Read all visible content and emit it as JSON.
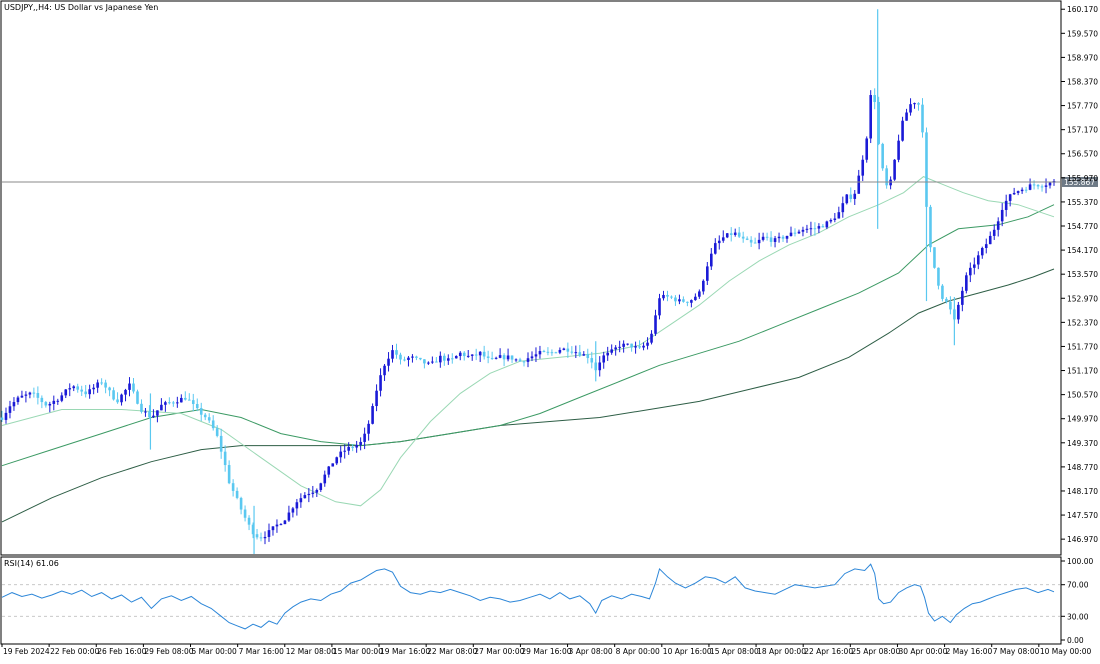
{
  "chart_data": {
    "type": "candlestick",
    "title": "USDJPY,,H4:  US Dollar vs Japanese Yen",
    "current_price": 155.867,
    "current_price_label": "155.867",
    "main_ylim": [
      146.6,
      160.35
    ],
    "y_ticks": [
      "160.170",
      "159.570",
      "158.970",
      "158.370",
      "157.770",
      "157.170",
      "156.570",
      "155.970",
      "155.370",
      "154.770",
      "154.170",
      "153.570",
      "152.970",
      "152.370",
      "151.770",
      "151.170",
      "150.570",
      "149.970",
      "149.370",
      "148.770",
      "148.170",
      "147.570",
      "146.970"
    ],
    "x_ticks": [
      "19 Feb 2024",
      "22 Feb 00:00",
      "26 Feb 16:00",
      "29 Feb 08:00",
      "5 Mar 00:00",
      "7 Mar 16:00",
      "12 Mar 08:00",
      "15 Mar 00:00",
      "19 Mar 16:00",
      "22 Mar 08:00",
      "27 Mar 00:00",
      "29 Mar 16:00",
      "3 Apr 08:00",
      "8 Apr 00:00",
      "10 Apr 16:00",
      "15 Apr 08:00",
      "18 Apr 00:00",
      "22 Apr 16:00",
      "25 Apr 08:00",
      "30 Apr 00:00",
      "2 May 16:00",
      "7 May 08:00",
      "10 May 00:00"
    ],
    "colors": {
      "bull": "#1a1ad6",
      "bear": "#5ac8f0",
      "ma_fast": "#9ad8b4",
      "ma_mid": "#3c9a64",
      "ma_slow": "#2e5e46",
      "rsi": "#2c86d8",
      "grid": "#c0c0c0",
      "price_line": "#8a8a8a",
      "price_tag": "#6e7a86"
    },
    "close_series_points": [
      [
        0,
        150.0
      ],
      [
        8,
        150.3
      ],
      [
        18,
        150.5
      ],
      [
        30,
        150.6
      ],
      [
        45,
        150.3
      ],
      [
        58,
        150.5
      ],
      [
        70,
        150.8
      ],
      [
        85,
        150.6
      ],
      [
        100,
        150.9
      ],
      [
        115,
        150.4
      ],
      [
        128,
        150.8
      ],
      [
        140,
        150.2
      ],
      [
        150,
        150.0
      ],
      [
        160,
        150.3
      ],
      [
        172,
        150.4
      ],
      [
        185,
        150.5
      ],
      [
        195,
        150.2
      ],
      [
        205,
        150.0
      ],
      [
        215,
        149.6
      ],
      [
        222,
        149.0
      ],
      [
        228,
        148.4
      ],
      [
        235,
        148.0
      ],
      [
        242,
        147.6
      ],
      [
        250,
        147.2
      ],
      [
        258,
        147.0
      ],
      [
        266,
        147.1
      ],
      [
        275,
        147.3
      ],
      [
        285,
        147.5
      ],
      [
        295,
        147.9
      ],
      [
        305,
        148.1
      ],
      [
        315,
        148.2
      ],
      [
        325,
        148.6
      ],
      [
        335,
        149.0
      ],
      [
        345,
        149.2
      ],
      [
        355,
        149.3
      ],
      [
        362,
        149.4
      ],
      [
        370,
        150.0
      ],
      [
        377,
        150.8
      ],
      [
        385,
        151.4
      ],
      [
        393,
        151.7
      ],
      [
        400,
        151.4
      ],
      [
        410,
        151.5
      ],
      [
        420,
        151.4
      ],
      [
        430,
        151.3
      ],
      [
        440,
        151.5
      ],
      [
        450,
        151.4
      ],
      [
        460,
        151.6
      ],
      [
        470,
        151.5
      ],
      [
        480,
        151.6
      ],
      [
        490,
        151.4
      ],
      [
        500,
        151.5
      ],
      [
        510,
        151.5
      ],
      [
        520,
        151.4
      ],
      [
        530,
        151.5
      ],
      [
        540,
        151.6
      ],
      [
        550,
        151.6
      ],
      [
        560,
        151.7
      ],
      [
        570,
        151.7
      ],
      [
        580,
        151.6
      ],
      [
        590,
        151.5
      ],
      [
        596,
        151.2
      ],
      [
        602,
        151.5
      ],
      [
        610,
        151.6
      ],
      [
        620,
        151.8
      ],
      [
        630,
        151.8
      ],
      [
        640,
        151.7
      ],
      [
        650,
        151.9
      ],
      [
        655,
        152.4
      ],
      [
        660,
        153.0
      ],
      [
        670,
        153.0
      ],
      [
        680,
        152.9
      ],
      [
        690,
        152.9
      ],
      [
        700,
        153.1
      ],
      [
        708,
        153.8
      ],
      [
        716,
        154.3
      ],
      [
        725,
        154.5
      ],
      [
        735,
        154.6
      ],
      [
        745,
        154.4
      ],
      [
        755,
        154.3
      ],
      [
        765,
        154.5
      ],
      [
        775,
        154.4
      ],
      [
        785,
        154.5
      ],
      [
        795,
        154.6
      ],
      [
        805,
        154.7
      ],
      [
        815,
        154.7
      ],
      [
        825,
        154.8
      ],
      [
        832,
        154.9
      ],
      [
        840,
        155.1
      ],
      [
        848,
        155.5
      ],
      [
        855,
        155.5
      ],
      [
        862,
        156.2
      ],
      [
        868,
        157.0
      ],
      [
        872,
        158.0
      ],
      [
        876,
        157.9
      ],
      [
        880,
        156.8
      ],
      [
        885,
        156.0
      ],
      [
        890,
        155.6
      ],
      [
        896,
        156.4
      ],
      [
        902,
        157.2
      ],
      [
        908,
        157.6
      ],
      [
        914,
        157.9
      ],
      [
        920,
        157.8
      ],
      [
        925,
        157.0
      ],
      [
        928,
        155.2
      ],
      [
        932,
        154.2
      ],
      [
        938,
        153.5
      ],
      [
        944,
        153.0
      ],
      [
        950,
        152.8
      ],
      [
        956,
        152.4
      ],
      [
        962,
        153.0
      ],
      [
        968,
        153.5
      ],
      [
        975,
        153.8
      ],
      [
        982,
        154.1
      ],
      [
        990,
        154.4
      ],
      [
        998,
        154.8
      ],
      [
        1005,
        155.3
      ],
      [
        1015,
        155.6
      ],
      [
        1025,
        155.7
      ],
      [
        1035,
        155.8
      ],
      [
        1045,
        155.8
      ],
      [
        1056,
        155.867
      ]
    ],
    "spikes": [
      {
        "x": 879,
        "high": 160.17,
        "low": 154.7
      },
      {
        "x": 928,
        "high": 156.0,
        "low": 152.9
      },
      {
        "x": 956,
        "high": 153.0,
        "low": 151.8
      },
      {
        "x": 596,
        "high": 151.9,
        "low": 150.9
      },
      {
        "x": 149,
        "high": 150.6,
        "low": 149.2
      },
      {
        "x": 253,
        "high": 147.8,
        "low": 146.6
      }
    ],
    "ma_fast": [
      [
        0,
        149.8
      ],
      [
        60,
        150.2
      ],
      [
        120,
        150.2
      ],
      [
        180,
        150.1
      ],
      [
        220,
        149.7
      ],
      [
        260,
        149.0
      ],
      [
        300,
        148.3
      ],
      [
        335,
        147.9
      ],
      [
        360,
        147.8
      ],
      [
        380,
        148.2
      ],
      [
        400,
        149.0
      ],
      [
        430,
        149.9
      ],
      [
        460,
        150.6
      ],
      [
        490,
        151.1
      ],
      [
        520,
        151.4
      ],
      [
        560,
        151.5
      ],
      [
        600,
        151.6
      ],
      [
        640,
        151.8
      ],
      [
        670,
        152.3
      ],
      [
        700,
        152.8
      ],
      [
        730,
        153.4
      ],
      [
        760,
        153.9
      ],
      [
        790,
        154.3
      ],
      [
        820,
        154.6
      ],
      [
        850,
        155.0
      ],
      [
        880,
        155.3
      ],
      [
        905,
        155.6
      ],
      [
        925,
        156.0
      ],
      [
        945,
        155.8
      ],
      [
        965,
        155.6
      ],
      [
        990,
        155.4
      ],
      [
        1020,
        155.3
      ],
      [
        1056,
        155.0
      ]
    ],
    "ma_mid": [
      [
        0,
        148.8
      ],
      [
        50,
        149.2
      ],
      [
        100,
        149.6
      ],
      [
        150,
        150.0
      ],
      [
        200,
        150.2
      ],
      [
        240,
        150.0
      ],
      [
        280,
        149.6
      ],
      [
        320,
        149.4
      ],
      [
        360,
        149.3
      ],
      [
        400,
        149.4
      ],
      [
        450,
        149.6
      ],
      [
        500,
        149.8
      ],
      [
        540,
        150.1
      ],
      [
        580,
        150.5
      ],
      [
        620,
        150.9
      ],
      [
        660,
        151.3
      ],
      [
        700,
        151.6
      ],
      [
        740,
        151.9
      ],
      [
        780,
        152.3
      ],
      [
        820,
        152.7
      ],
      [
        860,
        153.1
      ],
      [
        900,
        153.6
      ],
      [
        930,
        154.3
      ],
      [
        960,
        154.7
      ],
      [
        1000,
        154.8
      ],
      [
        1030,
        155.0
      ],
      [
        1056,
        155.3
      ]
    ],
    "ma_slow": [
      [
        0,
        147.4
      ],
      [
        50,
        148.0
      ],
      [
        100,
        148.5
      ],
      [
        150,
        148.9
      ],
      [
        200,
        149.2
      ],
      [
        240,
        149.3
      ],
      [
        280,
        149.3
      ],
      [
        320,
        149.3
      ],
      [
        360,
        149.3
      ],
      [
        400,
        149.4
      ],
      [
        450,
        149.6
      ],
      [
        500,
        149.8
      ],
      [
        550,
        149.9
      ],
      [
        600,
        150.0
      ],
      [
        650,
        150.2
      ],
      [
        700,
        150.4
      ],
      [
        750,
        150.7
      ],
      [
        800,
        151.0
      ],
      [
        850,
        151.5
      ],
      [
        890,
        152.1
      ],
      [
        920,
        152.6
      ],
      [
        950,
        152.9
      ],
      [
        980,
        153.1
      ],
      [
        1010,
        153.3
      ],
      [
        1035,
        153.5
      ],
      [
        1056,
        153.7
      ]
    ],
    "rsi": {
      "label": "RSI(14) 61.06",
      "value": 61.06,
      "ylim": [
        0,
        100
      ],
      "levels": [
        30,
        70
      ],
      "y_ticks": [
        "100.00",
        "70.00",
        "30.00",
        "0.00"
      ],
      "points": [
        [
          0,
          54
        ],
        [
          10,
          60
        ],
        [
          20,
          55
        ],
        [
          30,
          58
        ],
        [
          40,
          53
        ],
        [
          50,
          57
        ],
        [
          60,
          62
        ],
        [
          70,
          58
        ],
        [
          80,
          63
        ],
        [
          90,
          55
        ],
        [
          100,
          60
        ],
        [
          110,
          52
        ],
        [
          120,
          57
        ],
        [
          130,
          48
        ],
        [
          140,
          54
        ],
        [
          150,
          40
        ],
        [
          160,
          52
        ],
        [
          170,
          56
        ],
        [
          180,
          50
        ],
        [
          190,
          55
        ],
        [
          200,
          46
        ],
        [
          210,
          40
        ],
        [
          220,
          30
        ],
        [
          228,
          22
        ],
        [
          236,
          18
        ],
        [
          244,
          14
        ],
        [
          252,
          20
        ],
        [
          260,
          16
        ],
        [
          268,
          24
        ],
        [
          276,
          20
        ],
        [
          284,
          34
        ],
        [
          292,
          42
        ],
        [
          300,
          48
        ],
        [
          310,
          52
        ],
        [
          320,
          50
        ],
        [
          330,
          58
        ],
        [
          340,
          62
        ],
        [
          350,
          72
        ],
        [
          360,
          76
        ],
        [
          368,
          82
        ],
        [
          376,
          88
        ],
        [
          384,
          90
        ],
        [
          392,
          86
        ],
        [
          400,
          68
        ],
        [
          410,
          60
        ],
        [
          420,
          58
        ],
        [
          430,
          62
        ],
        [
          440,
          60
        ],
        [
          450,
          64
        ],
        [
          460,
          60
        ],
        [
          470,
          56
        ],
        [
          480,
          50
        ],
        [
          490,
          54
        ],
        [
          500,
          52
        ],
        [
          510,
          48
        ],
        [
          520,
          50
        ],
        [
          530,
          54
        ],
        [
          540,
          58
        ],
        [
          550,
          52
        ],
        [
          560,
          60
        ],
        [
          570,
          52
        ],
        [
          580,
          56
        ],
        [
          590,
          46
        ],
        [
          596,
          34
        ],
        [
          602,
          50
        ],
        [
          612,
          56
        ],
        [
          622,
          52
        ],
        [
          632,
          58
        ],
        [
          642,
          55
        ],
        [
          650,
          52
        ],
        [
          656,
          72
        ],
        [
          660,
          90
        ],
        [
          668,
          80
        ],
        [
          676,
          72
        ],
        [
          686,
          66
        ],
        [
          696,
          72
        ],
        [
          706,
          80
        ],
        [
          716,
          78
        ],
        [
          726,
          72
        ],
        [
          736,
          80
        ],
        [
          746,
          66
        ],
        [
          756,
          62
        ],
        [
          766,
          60
        ],
        [
          776,
          58
        ],
        [
          786,
          64
        ],
        [
          796,
          70
        ],
        [
          806,
          68
        ],
        [
          816,
          66
        ],
        [
          826,
          68
        ],
        [
          836,
          70
        ],
        [
          846,
          84
        ],
        [
          856,
          90
        ],
        [
          866,
          88
        ],
        [
          872,
          96
        ],
        [
          876,
          84
        ],
        [
          880,
          52
        ],
        [
          885,
          46
        ],
        [
          892,
          48
        ],
        [
          900,
          60
        ],
        [
          908,
          66
        ],
        [
          916,
          70
        ],
        [
          922,
          68
        ],
        [
          926,
          54
        ],
        [
          930,
          34
        ],
        [
          936,
          24
        ],
        [
          944,
          30
        ],
        [
          952,
          22
        ],
        [
          958,
          32
        ],
        [
          966,
          40
        ],
        [
          974,
          46
        ],
        [
          982,
          48
        ],
        [
          990,
          52
        ],
        [
          998,
          56
        ],
        [
          1008,
          60
        ],
        [
          1018,
          64
        ],
        [
          1028,
          66
        ],
        [
          1040,
          60
        ],
        [
          1050,
          64
        ],
        [
          1056,
          61
        ]
      ]
    }
  }
}
